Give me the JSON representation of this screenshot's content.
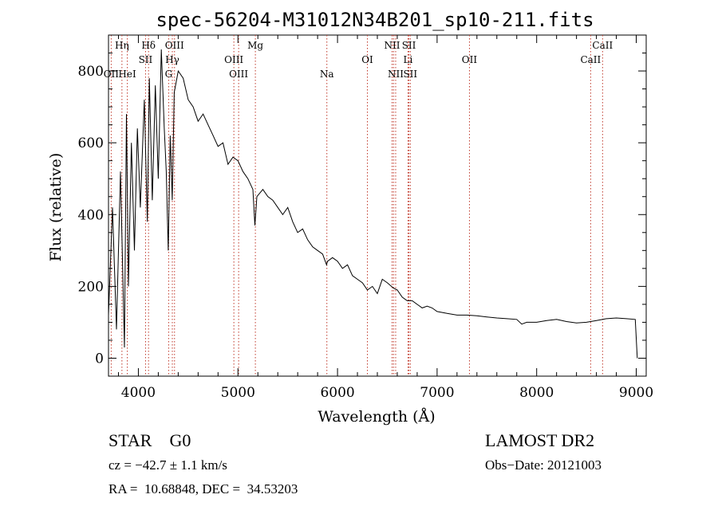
{
  "chart_data": {
    "type": "line",
    "title": "spec-56204-M31012N34B201_sp10-211.fits",
    "xlabel": "Wavelength (Å)",
    "ylabel": "Flux (relative)",
    "xlim": [
      3700,
      9100
    ],
    "ylim": [
      -50,
      900
    ],
    "xticks": [
      4000,
      5000,
      6000,
      7000,
      8000,
      9000
    ],
    "yticks": [
      0,
      200,
      400,
      600,
      800
    ],
    "grid": false,
    "series": [
      {
        "x": [
          3700,
          3740,
          3780,
          3820,
          3860,
          3880,
          3900,
          3930,
          3960,
          3990,
          4020,
          4060,
          4090,
          4110,
          4140,
          4170,
          4200,
          4230,
          4260,
          4280,
          4300,
          4320,
          4340,
          4360,
          4400,
          4450,
          4500,
          4550,
          4600,
          4650,
          4700,
          4750,
          4800,
          4850,
          4900,
          4950,
          5000,
          5050,
          5100,
          5150,
          5170,
          5190,
          5250,
          5300,
          5350,
          5400,
          5450,
          5500,
          5550,
          5600,
          5650,
          5700,
          5750,
          5800,
          5850,
          5890,
          5900,
          5950,
          6000,
          6050,
          6100,
          6150,
          6200,
          6250,
          6300,
          6350,
          6400,
          6450,
          6500,
          6563,
          6600,
          6650,
          6700,
          6750,
          6800,
          6850,
          6900,
          6950,
          7000,
          7100,
          7200,
          7300,
          7400,
          7500,
          7600,
          7700,
          7800,
          7850,
          7900,
          8000,
          8100,
          8200,
          8300,
          8400,
          8500,
          8600,
          8700,
          8800,
          8900,
          8990,
          9010
        ],
        "y": [
          120,
          420,
          80,
          520,
          30,
          680,
          200,
          600,
          300,
          640,
          420,
          720,
          380,
          780,
          440,
          760,
          500,
          860,
          640,
          520,
          300,
          620,
          440,
          740,
          800,
          780,
          720,
          700,
          660,
          680,
          650,
          620,
          590,
          600,
          540,
          560,
          550,
          520,
          500,
          470,
          370,
          450,
          470,
          450,
          440,
          420,
          400,
          420,
          380,
          350,
          360,
          330,
          310,
          300,
          290,
          260,
          270,
          280,
          270,
          250,
          260,
          230,
          220,
          210,
          190,
          200,
          180,
          220,
          210,
          195,
          190,
          170,
          160,
          160,
          150,
          140,
          145,
          140,
          130,
          125,
          120,
          120,
          118,
          115,
          112,
          110,
          108,
          95,
          100,
          100,
          105,
          108,
          102,
          98,
          100,
          105,
          110,
          112,
          110,
          108,
          0
        ]
      }
    ],
    "line_markers": [
      {
        "label": "Hη",
        "x": 3835,
        "row": 1
      },
      {
        "label": "OII",
        "x": 3727,
        "row": 3
      },
      {
        "label": "HeI",
        "x": 3889,
        "row": 3
      },
      {
        "label": "Hδ",
        "x": 4102,
        "row": 1
      },
      {
        "label": "SII",
        "x": 4072,
        "row": 2
      },
      {
        "label": "OIII",
        "x": 4363,
        "row": 1
      },
      {
        "label": "Hγ",
        "x": 4341,
        "row": 2
      },
      {
        "label": "G",
        "x": 4304,
        "row": 3
      },
      {
        "label": "OIII",
        "x": 4959,
        "row": 2
      },
      {
        "label": "OIII",
        "x": 5007,
        "row": 3
      },
      {
        "label": "Mg",
        "x": 5175,
        "row": 1
      },
      {
        "label": "Na",
        "x": 5893,
        "row": 3
      },
      {
        "label": "OI",
        "x": 6300,
        "row": 2
      },
      {
        "label": "NII",
        "x": 6548,
        "row": 1
      },
      {
        "label": "SII",
        "x": 6717,
        "row": 1
      },
      {
        "label": "Li",
        "x": 6708,
        "row": 2
      },
      {
        "label": "NII",
        "x": 6584,
        "row": 3
      },
      {
        "label": "SII",
        "x": 6731,
        "row": 3
      },
      {
        "label": "OII",
        "x": 7325,
        "row": 2
      },
      {
        "label": "CaII",
        "x": 8662,
        "row": 1
      },
      {
        "label": "CaII",
        "x": 8542,
        "row": 2
      }
    ],
    "marker_lines_x": [
      3727,
      3835,
      3889,
      4072,
      4102,
      4304,
      4341,
      4363,
      4959,
      5007,
      5175,
      5893,
      6300,
      6548,
      6563,
      6584,
      6708,
      6717,
      6731,
      7325,
      8542,
      8662
    ]
  },
  "info": {
    "class": "STAR    G0",
    "survey": "LAMOST DR2",
    "cz": "cz = −42.7 ± 1.1 km/s",
    "obs_date": "Obs−Date: 20121003",
    "coords": "RA =  10.68848, DEC =  34.53203"
  }
}
